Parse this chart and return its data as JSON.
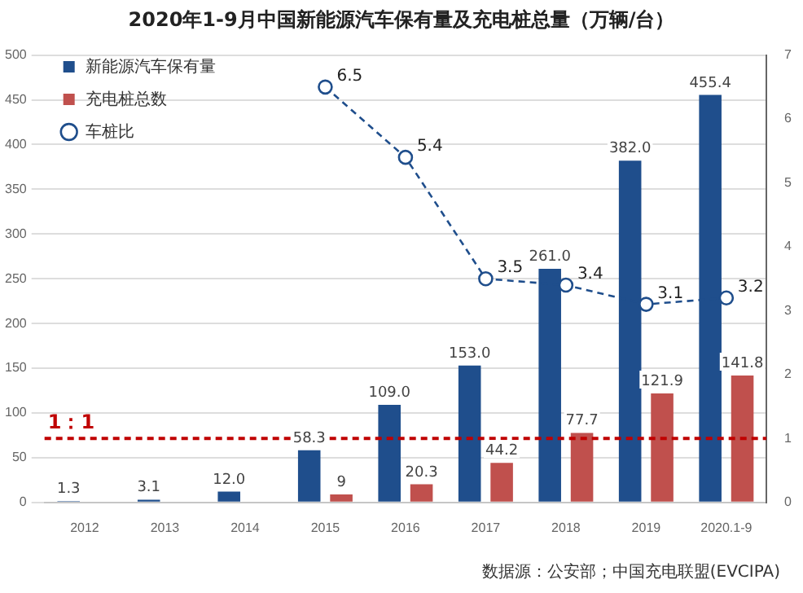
{
  "chart_data": {
    "type": "bar",
    "title": "2020年1-9月中国新能源汽车保有量及充电桩总量（万辆/台）",
    "categories": [
      "2012",
      "2013",
      "2014",
      "2015",
      "2016",
      "2017",
      "2018",
      "2019",
      "2020.1-9"
    ],
    "series": [
      {
        "name": "新能源汽车保有量",
        "color": "#1f4e8c",
        "values": [
          1.3,
          3.1,
          12.0,
          58.3,
          109.0,
          153.0,
          261.0,
          382.0,
          455.4
        ],
        "value_labels": [
          "1.3",
          "3.1",
          "12.0",
          "58.3",
          "109.0",
          "153.0",
          "261.0",
          "382.0",
          "455.4"
        ]
      },
      {
        "name": "充电桩总数",
        "color": "#c0504d",
        "values": [
          null,
          null,
          null,
          9,
          20.3,
          44.2,
          77.7,
          121.9,
          141.8
        ],
        "value_labels": [
          null,
          null,
          null,
          "9",
          "20.3",
          "44.2",
          "77.7",
          "121.9",
          "141.8"
        ]
      },
      {
        "name": "车桩比",
        "type": "line",
        "axis": "y2",
        "color": "#1f4e8c",
        "marker": "circle",
        "line_style": "dashed",
        "values": [
          null,
          null,
          null,
          6.5,
          5.4,
          3.5,
          3.4,
          3.1,
          3.2
        ],
        "value_labels": [
          null,
          null,
          null,
          "6.5",
          "5.4",
          "3.5",
          "3.4",
          "3.1",
          "3.2"
        ]
      }
    ],
    "ylim": [
      0,
      500
    ],
    "yticks": [
      0,
      50,
      100,
      150,
      200,
      250,
      300,
      350,
      400,
      450,
      500
    ],
    "y2lim": [
      0,
      7
    ],
    "y2ticks": [
      0,
      1,
      2,
      3,
      4,
      5,
      6,
      7
    ],
    "ref_lines": [
      {
        "axis": "y2",
        "value": 1,
        "label": "1：1",
        "color": "#c00000",
        "line_style": "dashed"
      }
    ],
    "grid": "y",
    "legend": "top left",
    "annotations": [
      "数据源：公安部；中国充电联盟(EVCIPA)"
    ]
  }
}
